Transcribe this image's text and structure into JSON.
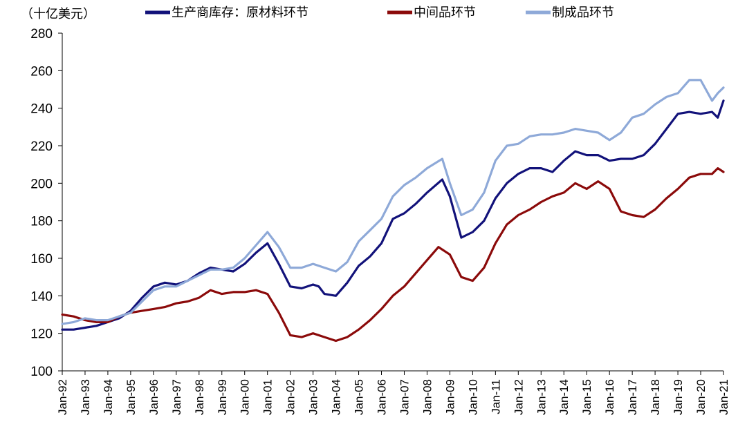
{
  "chart_data": {
    "type": "line",
    "unit_label": "（十亿美元）",
    "ylim": [
      100,
      280
    ],
    "yticks": [
      100,
      120,
      140,
      160,
      180,
      200,
      220,
      240,
      260,
      280
    ],
    "xlim": [
      "1992-01",
      "2021-01"
    ],
    "xticks": [
      "Jan-92",
      "Jan-93",
      "Jan-94",
      "Jan-95",
      "Jan-96",
      "Jan-97",
      "Jan-98",
      "Jan-99",
      "Jan-00",
      "Jan-01",
      "Jan-02",
      "Jan-03",
      "Jan-04",
      "Jan-05",
      "Jan-06",
      "Jan-07",
      "Jan-08",
      "Jan-09",
      "Jan-10",
      "Jan-11",
      "Jan-12",
      "Jan-13",
      "Jan-14",
      "Jan-15",
      "Jan-16",
      "Jan-17",
      "Jan-18",
      "Jan-19",
      "Jan-20",
      "Jan-21"
    ],
    "grid": false,
    "legend_position": "top",
    "series": [
      {
        "name": "生产商库存：原材料环节",
        "color": "#12127a",
        "points": [
          [
            "1992-01",
            122
          ],
          [
            "1992-07",
            122
          ],
          [
            "1993-01",
            123
          ],
          [
            "1993-07",
            124
          ],
          [
            "1994-01",
            126
          ],
          [
            "1994-07",
            128
          ],
          [
            "1995-01",
            132
          ],
          [
            "1995-07",
            139
          ],
          [
            "1996-01",
            145
          ],
          [
            "1996-07",
            147
          ],
          [
            "1997-01",
            146
          ],
          [
            "1997-07",
            148
          ],
          [
            "1998-01",
            152
          ],
          [
            "1998-07",
            155
          ],
          [
            "1999-01",
            154
          ],
          [
            "1999-07",
            153
          ],
          [
            "2000-01",
            157
          ],
          [
            "2000-07",
            163
          ],
          [
            "2001-01",
            168
          ],
          [
            "2001-07",
            157
          ],
          [
            "2002-01",
            145
          ],
          [
            "2002-07",
            144
          ],
          [
            "2003-01",
            146
          ],
          [
            "2003-04",
            145
          ],
          [
            "2003-07",
            141
          ],
          [
            "2004-01",
            140
          ],
          [
            "2004-07",
            147
          ],
          [
            "2005-01",
            156
          ],
          [
            "2005-07",
            161
          ],
          [
            "2006-01",
            168
          ],
          [
            "2006-07",
            181
          ],
          [
            "2007-01",
            184
          ],
          [
            "2007-07",
            189
          ],
          [
            "2008-01",
            195
          ],
          [
            "2008-09",
            202
          ],
          [
            "2009-01",
            193
          ],
          [
            "2009-07",
            171
          ],
          [
            "2010-01",
            174
          ],
          [
            "2010-07",
            180
          ],
          [
            "2011-01",
            192
          ],
          [
            "2011-07",
            200
          ],
          [
            "2012-01",
            205
          ],
          [
            "2012-07",
            208
          ],
          [
            "2013-01",
            208
          ],
          [
            "2013-07",
            206
          ],
          [
            "2014-01",
            212
          ],
          [
            "2014-07",
            217
          ],
          [
            "2015-01",
            215
          ],
          [
            "2015-07",
            215
          ],
          [
            "2016-01",
            212
          ],
          [
            "2016-07",
            213
          ],
          [
            "2017-01",
            213
          ],
          [
            "2017-07",
            215
          ],
          [
            "2018-01",
            221
          ],
          [
            "2018-07",
            229
          ],
          [
            "2019-01",
            237
          ],
          [
            "2019-07",
            238
          ],
          [
            "2020-01",
            237
          ],
          [
            "2020-07",
            238
          ],
          [
            "2020-10",
            235
          ],
          [
            "2021-01",
            244
          ]
        ]
      },
      {
        "name": "中间品环节",
        "color": "#8b0a0a",
        "points": [
          [
            "1992-01",
            130
          ],
          [
            "1992-07",
            129
          ],
          [
            "1993-01",
            127
          ],
          [
            "1993-07",
            126
          ],
          [
            "1994-01",
            126
          ],
          [
            "1994-07",
            129
          ],
          [
            "1995-01",
            131
          ],
          [
            "1995-07",
            132
          ],
          [
            "1996-01",
            133
          ],
          [
            "1996-07",
            134
          ],
          [
            "1997-01",
            136
          ],
          [
            "1997-07",
            137
          ],
          [
            "1998-01",
            139
          ],
          [
            "1998-07",
            143
          ],
          [
            "1999-01",
            141
          ],
          [
            "1999-07",
            142
          ],
          [
            "2000-01",
            142
          ],
          [
            "2000-07",
            143
          ],
          [
            "2001-01",
            141
          ],
          [
            "2001-07",
            131
          ],
          [
            "2002-01",
            119
          ],
          [
            "2002-07",
            118
          ],
          [
            "2003-01",
            120
          ],
          [
            "2003-07",
            118
          ],
          [
            "2004-01",
            116
          ],
          [
            "2004-07",
            118
          ],
          [
            "2005-01",
            122
          ],
          [
            "2005-07",
            127
          ],
          [
            "2006-01",
            133
          ],
          [
            "2006-07",
            140
          ],
          [
            "2007-01",
            145
          ],
          [
            "2007-07",
            152
          ],
          [
            "2008-01",
            159
          ],
          [
            "2008-07",
            166
          ],
          [
            "2009-01",
            162
          ],
          [
            "2009-07",
            150
          ],
          [
            "2010-01",
            148
          ],
          [
            "2010-07",
            155
          ],
          [
            "2011-01",
            168
          ],
          [
            "2011-07",
            178
          ],
          [
            "2012-01",
            183
          ],
          [
            "2012-07",
            186
          ],
          [
            "2013-01",
            190
          ],
          [
            "2013-07",
            193
          ],
          [
            "2014-01",
            195
          ],
          [
            "2014-07",
            200
          ],
          [
            "2015-01",
            197
          ],
          [
            "2015-07",
            201
          ],
          [
            "2016-01",
            197
          ],
          [
            "2016-07",
            185
          ],
          [
            "2017-01",
            183
          ],
          [
            "2017-07",
            182
          ],
          [
            "2018-01",
            186
          ],
          [
            "2018-07",
            192
          ],
          [
            "2019-01",
            197
          ],
          [
            "2019-07",
            203
          ],
          [
            "2020-01",
            205
          ],
          [
            "2020-07",
            205
          ],
          [
            "2020-10",
            208
          ],
          [
            "2021-01",
            206
          ]
        ]
      },
      {
        "name": "制成品环节",
        "color": "#8ea9d8",
        "points": [
          [
            "1992-01",
            125
          ],
          [
            "1992-07",
            126
          ],
          [
            "1993-01",
            128
          ],
          [
            "1993-07",
            127
          ],
          [
            "1994-01",
            127
          ],
          [
            "1994-07",
            129
          ],
          [
            "1995-01",
            131
          ],
          [
            "1995-07",
            137
          ],
          [
            "1996-01",
            143
          ],
          [
            "1996-07",
            145
          ],
          [
            "1997-01",
            145
          ],
          [
            "1997-07",
            148
          ],
          [
            "1998-01",
            151
          ],
          [
            "1998-07",
            154
          ],
          [
            "1999-01",
            154
          ],
          [
            "1999-07",
            155
          ],
          [
            "2000-01",
            160
          ],
          [
            "2000-07",
            167
          ],
          [
            "2001-01",
            174
          ],
          [
            "2001-07",
            166
          ],
          [
            "2002-01",
            155
          ],
          [
            "2002-07",
            155
          ],
          [
            "2003-01",
            157
          ],
          [
            "2003-07",
            155
          ],
          [
            "2004-01",
            153
          ],
          [
            "2004-07",
            158
          ],
          [
            "2005-01",
            169
          ],
          [
            "2005-07",
            175
          ],
          [
            "2006-01",
            181
          ],
          [
            "2006-07",
            193
          ],
          [
            "2007-01",
            199
          ],
          [
            "2007-07",
            203
          ],
          [
            "2008-01",
            208
          ],
          [
            "2008-09",
            213
          ],
          [
            "2009-01",
            200
          ],
          [
            "2009-07",
            183
          ],
          [
            "2010-01",
            186
          ],
          [
            "2010-07",
            195
          ],
          [
            "2011-01",
            212
          ],
          [
            "2011-07",
            220
          ],
          [
            "2012-01",
            221
          ],
          [
            "2012-07",
            225
          ],
          [
            "2013-01",
            226
          ],
          [
            "2013-07",
            226
          ],
          [
            "2014-01",
            227
          ],
          [
            "2014-07",
            229
          ],
          [
            "2015-01",
            228
          ],
          [
            "2015-07",
            227
          ],
          [
            "2016-01",
            223
          ],
          [
            "2016-07",
            227
          ],
          [
            "2017-01",
            235
          ],
          [
            "2017-07",
            237
          ],
          [
            "2018-01",
            242
          ],
          [
            "2018-07",
            246
          ],
          [
            "2019-01",
            248
          ],
          [
            "2019-07",
            255
          ],
          [
            "2020-01",
            255
          ],
          [
            "2020-07",
            244
          ],
          [
            "2020-10",
            248
          ],
          [
            "2021-01",
            251
          ]
        ]
      }
    ]
  }
}
